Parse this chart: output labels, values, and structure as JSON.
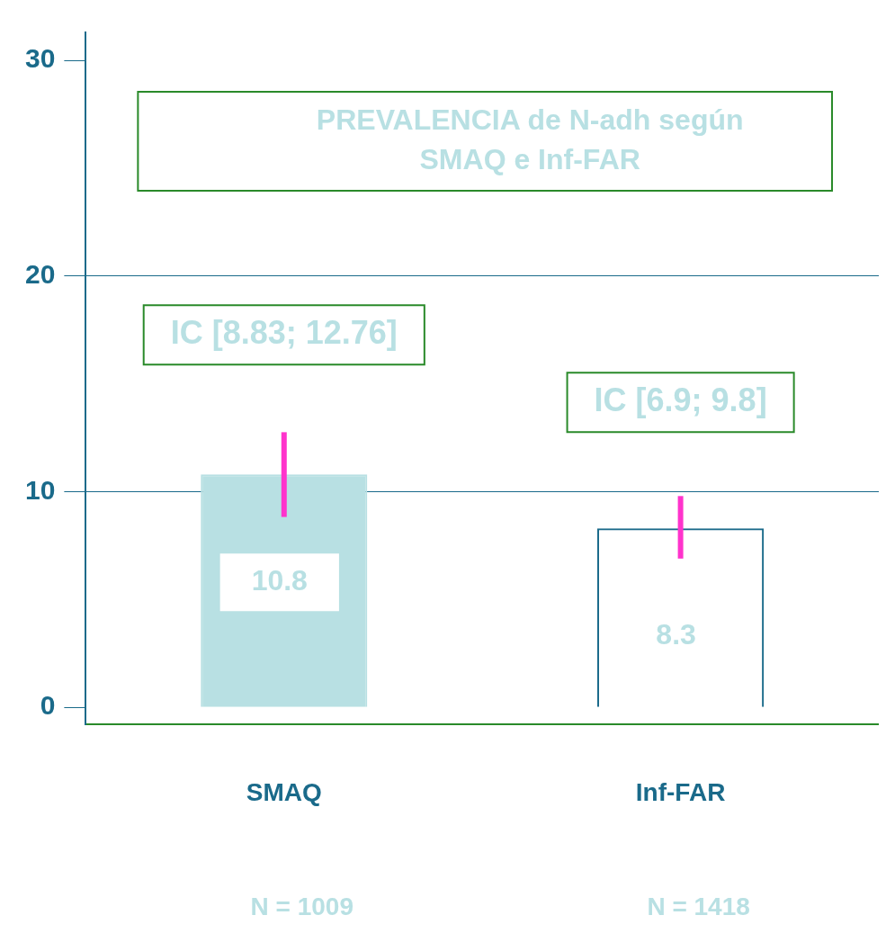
{
  "chart_data": {
    "type": "bar",
    "title": "PREVALENCIA de N-adh según SMAQ e Inf-FAR",
    "categories": [
      "SMAQ",
      "Inf-FAR"
    ],
    "values": [
      10.8,
      8.3
    ],
    "colors": [
      "#b8e0e3",
      "#1a6a8a"
    ],
    "errors": [
      [
        8.83,
        12.76
      ],
      [
        6.9,
        9.8
      ]
    ],
    "ylim": [
      -0.8,
      31.3
    ],
    "yticks": [
      0,
      10,
      20,
      30
    ],
    "grid": "y",
    "data_labels": true,
    "legend": false,
    "annotations": [
      "IC [8.83; 12.76]",
      "IC [6.9; 9.8]",
      "N = 1009",
      "N = 1418"
    ]
  }
}
